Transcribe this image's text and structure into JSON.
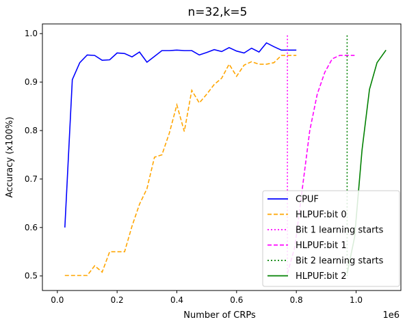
{
  "chart_data": {
    "type": "line",
    "title": "n=32,k=5",
    "xlabel": "Number of CRPs",
    "ylabel": "Accuracy (x100%)",
    "x_offset_label": "1e6",
    "xlim": [
      -0.05,
      1.15
    ],
    "ylim": [
      0.47,
      1.02
    ],
    "xticks": [
      0.0,
      0.2,
      0.4,
      0.6,
      0.8,
      1.0
    ],
    "xtick_labels": [
      "0.0",
      "0.2",
      "0.4",
      "0.6",
      "0.8",
      "1.0"
    ],
    "yticks": [
      0.5,
      0.6,
      0.7,
      0.8,
      0.9,
      1.0
    ],
    "ytick_labels": [
      "0.5",
      "0.6",
      "0.7",
      "0.8",
      "0.9",
      "1.0"
    ],
    "grid": false,
    "legend_position": "lower-right",
    "series": [
      {
        "name": "CPUF",
        "color": "#0000ff",
        "style": "solid",
        "x": [
          0.025,
          0.05,
          0.075,
          0.1,
          0.125,
          0.15,
          0.175,
          0.2,
          0.225,
          0.25,
          0.275,
          0.3,
          0.325,
          0.35,
          0.375,
          0.4,
          0.425,
          0.45,
          0.475,
          0.5,
          0.525,
          0.55,
          0.575,
          0.6,
          0.625,
          0.65,
          0.675,
          0.7,
          0.725,
          0.75,
          0.775,
          0.8
        ],
        "y": [
          0.6,
          0.905,
          0.94,
          0.956,
          0.955,
          0.945,
          0.946,
          0.96,
          0.959,
          0.952,
          0.962,
          0.941,
          0.953,
          0.965,
          0.965,
          0.966,
          0.965,
          0.965,
          0.956,
          0.961,
          0.967,
          0.963,
          0.971,
          0.964,
          0.96,
          0.97,
          0.962,
          0.981,
          0.973,
          0.966,
          0.966,
          0.966
        ]
      },
      {
        "name": "HLPUF:bit 0",
        "color": "#ffa500",
        "style": "dashed",
        "x": [
          0.025,
          0.05,
          0.075,
          0.1,
          0.125,
          0.15,
          0.175,
          0.2,
          0.225,
          0.25,
          0.275,
          0.3,
          0.325,
          0.35,
          0.375,
          0.4,
          0.425,
          0.45,
          0.475,
          0.5,
          0.525,
          0.55,
          0.575,
          0.6,
          0.625,
          0.65,
          0.675,
          0.7,
          0.725,
          0.75,
          0.775,
          0.8
        ],
        "y": [
          0.501,
          0.501,
          0.501,
          0.501,
          0.521,
          0.508,
          0.55,
          0.55,
          0.55,
          0.603,
          0.648,
          0.68,
          0.745,
          0.75,
          0.795,
          0.853,
          0.798,
          0.883,
          0.857,
          0.875,
          0.895,
          0.908,
          0.937,
          0.912,
          0.935,
          0.942,
          0.937,
          0.937,
          0.94,
          0.955,
          0.955,
          0.955
        ]
      },
      {
        "name": "Bit 1 learning starts",
        "color": "#ff00ff",
        "style": "dotted",
        "x": [
          0.77,
          0.77
        ],
        "y": [
          0.5,
          1.0
        ]
      },
      {
        "name": "HLPUF:bit 1",
        "color": "#ff00ff",
        "style": "dashed",
        "x": [
          0.77,
          0.795,
          0.82,
          0.845,
          0.87,
          0.895,
          0.92,
          0.945,
          0.97,
          0.995
        ],
        "y": [
          0.505,
          0.56,
          0.68,
          0.8,
          0.875,
          0.92,
          0.948,
          0.955,
          0.955,
          0.955
        ]
      },
      {
        "name": "Bit 2 learning starts",
        "color": "#008000",
        "style": "dotted",
        "x": [
          0.97,
          0.97
        ],
        "y": [
          0.5,
          1.0
        ]
      },
      {
        "name": "HLPUF:bit 2",
        "color": "#008000",
        "style": "solid",
        "x": [
          0.97,
          0.995,
          1.02,
          1.045,
          1.07,
          1.1
        ],
        "y": [
          0.505,
          0.58,
          0.76,
          0.885,
          0.94,
          0.966
        ]
      }
    ]
  }
}
